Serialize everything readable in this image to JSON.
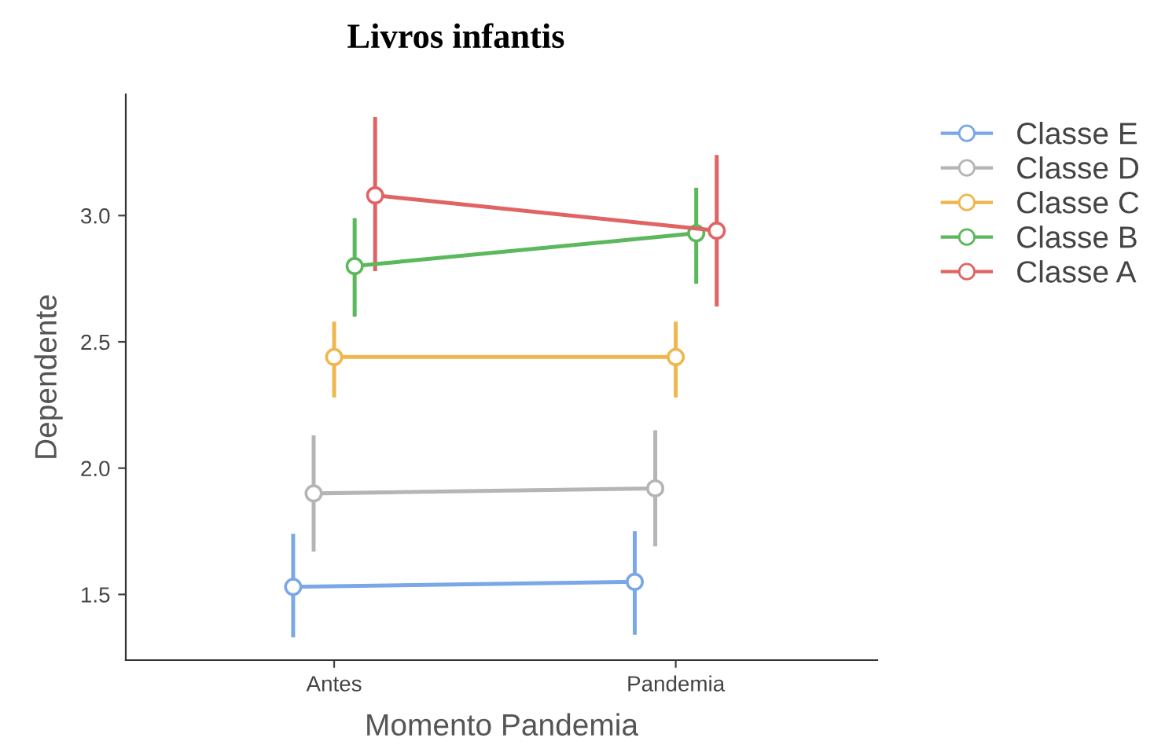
{
  "chart_data": {
    "type": "line",
    "title": "Livros infantis",
    "xlabel": "Momento Pandemia",
    "ylabel": "Dependente",
    "categories": [
      "Antes",
      "Pandemia"
    ],
    "series": [
      {
        "name": "Classe E",
        "color": "#7ba7e6",
        "values": [
          1.53,
          1.55
        ],
        "errors": [
          [
            1.33,
            1.74
          ],
          [
            1.34,
            1.75
          ]
        ]
      },
      {
        "name": "Classe D",
        "color": "#b5b5b5",
        "values": [
          1.9,
          1.92
        ],
        "errors": [
          [
            1.67,
            2.13
          ],
          [
            1.69,
            2.15
          ]
        ]
      },
      {
        "name": "Classe C",
        "color": "#f0b64e",
        "values": [
          2.44,
          2.44
        ],
        "errors": [
          [
            2.28,
            2.58
          ],
          [
            2.28,
            2.58
          ]
        ]
      },
      {
        "name": "Classe B",
        "color": "#5cb85c",
        "values": [
          2.8,
          2.93
        ],
        "errors": [
          [
            2.6,
            2.99
          ],
          [
            2.73,
            3.11
          ]
        ]
      },
      {
        "name": "Classe A",
        "color": "#e06464",
        "values": [
          3.08,
          2.94
        ],
        "errors": [
          [
            2.78,
            3.39
          ],
          [
            2.64,
            3.24
          ]
        ]
      }
    ],
    "ylim": [
      1.24,
      3.48
    ],
    "yticks": [
      {
        "value": 1.5,
        "label": "1.5"
      },
      {
        "value": 2.0,
        "label": "2.0"
      },
      {
        "value": 2.5,
        "label": "2.5"
      },
      {
        "value": 3.0,
        "label": "3.0"
      }
    ],
    "marker": "circle",
    "line_style": "solid",
    "grid": false,
    "legend": "right"
  }
}
